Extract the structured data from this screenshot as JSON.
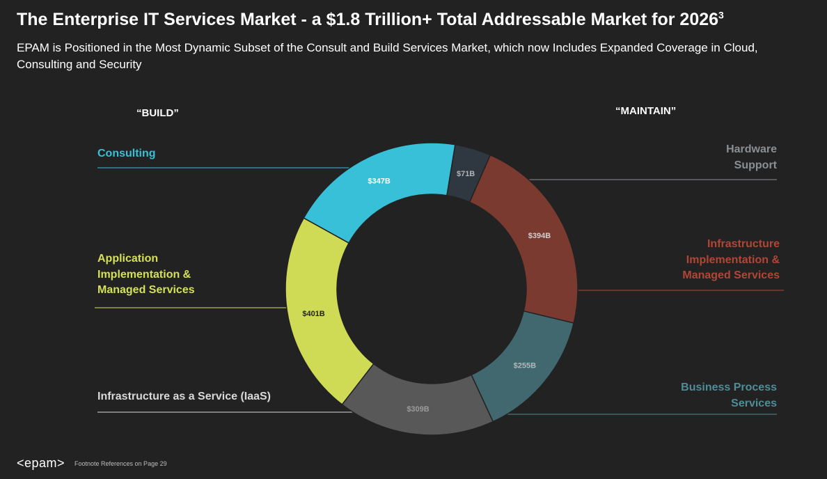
{
  "title": "The Enterprise IT Services Market - a $1.8 Trillion+ Total Addressable Market for 2026",
  "title_sup": "3",
  "subtitle": "EPAM is Positioned in the Most Dynamic Subset of the Consult and Build Services Market, which now Includes Expanded Coverage in Cloud, Consulting and Security",
  "headers": {
    "build": "“BUILD”",
    "maintain": "“MAINTAIN”"
  },
  "footer": {
    "logo": "<epam>",
    "footnote": "Footnote References on Page 29"
  },
  "chart_data": {
    "type": "donut",
    "series": [
      {
        "label": "Consulting",
        "value": 347,
        "value_label": "$347B",
        "color": "#37c0d8",
        "label_color": "#37c0d8",
        "value_color": "#ffffff"
      },
      {
        "label": "Hardware Support",
        "value": 71,
        "value_label": "$71B",
        "color": "#2f3740",
        "label_color": "#8a8f94",
        "value_color": "#b0b4b8"
      },
      {
        "label": "Infrastructure Implementation & Managed Services",
        "value": 394,
        "value_label": "$394B",
        "color": "#7a3a30",
        "label_color": "#b24636",
        "value_color": "#cfcfcf"
      },
      {
        "label": "Business Process Services",
        "value": 255,
        "value_label": "$255B",
        "color": "#41686f",
        "label_color": "#4d8e98",
        "value_color": "#aeb9bb"
      },
      {
        "label": "Infrastructure as a Service (IaaS)",
        "value": 309,
        "value_label": "$309B",
        "color": "#585858",
        "label_color": "#d9d9d9",
        "value_color": "#9a9a9a"
      },
      {
        "label": "Application Implementation & Managed Services",
        "value": 401,
        "value_label": "$401B",
        "color": "#cfdb55",
        "label_color": "#d4e157",
        "value_color": "#222222"
      }
    ]
  }
}
